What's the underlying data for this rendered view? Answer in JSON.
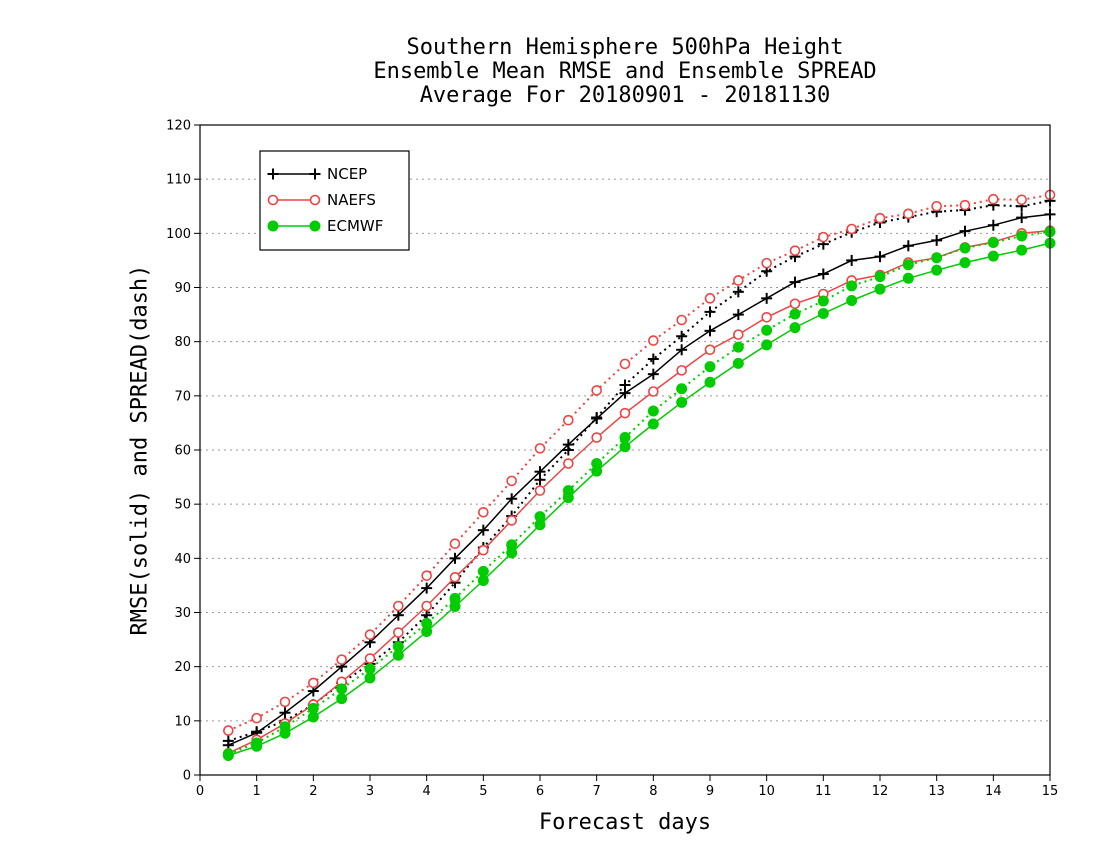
{
  "chart_data": {
    "type": "line",
    "title": [
      "Southern Hemisphere 500hPa Height",
      "Ensemble Mean RMSE and Ensemble SPREAD",
      "Average For 20180901 - 20181130"
    ],
    "xlabel": "Forecast days",
    "ylabel": "RMSE(solid) and SPREAD(dash)",
    "xlim": [
      0,
      15
    ],
    "ylim": [
      0,
      120
    ],
    "xticks": [
      0,
      1,
      2,
      3,
      4,
      5,
      6,
      7,
      8,
      9,
      10,
      11,
      12,
      13,
      14,
      15
    ],
    "yticks": [
      0,
      10,
      20,
      30,
      40,
      50,
      60,
      70,
      80,
      90,
      100,
      110,
      120
    ],
    "grid": "horizontal dotted",
    "legend_position": "top-left",
    "x": [
      0.5,
      1.0,
      1.5,
      2.0,
      2.5,
      3.0,
      3.5,
      4.0,
      4.5,
      5.0,
      5.5,
      6.0,
      6.5,
      7.0,
      7.5,
      8.0,
      8.5,
      9.0,
      9.5,
      10.0,
      10.5,
      11.0,
      11.5,
      12.0,
      12.5,
      13.0,
      13.5,
      14.0,
      14.5,
      15.0
    ],
    "series": [
      {
        "name": "NCEP",
        "metric": "RMSE",
        "style": "solid",
        "color": "#000000",
        "marker": "plus",
        "values": [
          5.5,
          7.8,
          11.5,
          15.5,
          20.0,
          24.5,
          29.5,
          34.5,
          40.0,
          45.2,
          51.0,
          56.0,
          61.0,
          65.8,
          70.5,
          74.0,
          78.5,
          82.0,
          85.0,
          88.0,
          91.0,
          92.5,
          95.0,
          95.7,
          97.7,
          98.7,
          100.4,
          101.5,
          102.9,
          103.5
        ]
      },
      {
        "name": "NCEP",
        "metric": "SPREAD",
        "style": "dotted",
        "color": "#000000",
        "marker": "plus",
        "values": [
          6.3,
          8.0,
          10.0,
          13.0,
          17.0,
          20.5,
          24.5,
          29.5,
          35.5,
          42.0,
          47.8,
          54.5,
          60.0,
          66.0,
          72.0,
          76.8,
          81.0,
          85.5,
          89.2,
          93.0,
          95.7,
          98.0,
          100.2,
          102.0,
          103.0,
          104.0,
          104.3,
          105.2,
          105.0,
          106.0
        ]
      },
      {
        "name": "NAEFS",
        "metric": "RMSE",
        "style": "solid",
        "color": "#ee4444",
        "marker": "open-circle",
        "values": [
          4.0,
          6.5,
          9.5,
          13.0,
          17.2,
          21.5,
          26.3,
          31.2,
          36.5,
          41.5,
          47.0,
          52.5,
          57.5,
          62.3,
          66.8,
          70.8,
          74.7,
          78.5,
          81.3,
          84.5,
          87.0,
          88.8,
          91.3,
          92.3,
          94.6,
          95.5,
          97.4,
          98.4,
          100.0,
          100.5
        ]
      },
      {
        "name": "NAEFS",
        "metric": "SPREAD",
        "style": "dotted",
        "color": "#ee4444",
        "marker": "open-circle",
        "values": [
          8.2,
          10.5,
          13.5,
          17.0,
          21.3,
          25.9,
          31.2,
          36.8,
          42.7,
          48.5,
          54.3,
          60.3,
          65.5,
          71.0,
          75.9,
          80.2,
          84.0,
          88.0,
          91.3,
          94.5,
          96.8,
          99.3,
          100.8,
          102.8,
          103.6,
          105.0,
          105.2,
          106.3,
          106.2,
          107.1
        ]
      },
      {
        "name": "ECMWF",
        "metric": "RMSE",
        "style": "solid",
        "color": "#00cc00",
        "marker": "filled-circle",
        "values": [
          3.6,
          5.3,
          7.7,
          10.7,
          14.1,
          17.9,
          22.1,
          26.5,
          31.1,
          35.9,
          41.0,
          46.2,
          51.2,
          56.1,
          60.6,
          64.8,
          68.8,
          72.5,
          76.0,
          79.4,
          82.6,
          85.2,
          87.6,
          89.7,
          91.7,
          93.2,
          94.6,
          95.8,
          96.9,
          98.2
        ]
      },
      {
        "name": "ECMWF",
        "metric": "SPREAD",
        "style": "dotted",
        "color": "#00cc00",
        "marker": "filled-circle",
        "values": [
          3.9,
          5.9,
          8.9,
          12.3,
          15.9,
          19.6,
          23.7,
          28.0,
          32.6,
          37.6,
          42.5,
          47.7,
          52.5,
          57.5,
          62.3,
          67.2,
          71.3,
          75.4,
          79.0,
          82.1,
          85.1,
          87.5,
          90.3,
          92.0,
          94.2,
          95.5,
          97.3,
          98.3,
          99.5,
          100.3
        ]
      }
    ],
    "legend": [
      {
        "label": "NCEP",
        "color": "#000000",
        "marker": "plus"
      },
      {
        "label": "NAEFS",
        "color": "#ee4444",
        "marker": "open-circle"
      },
      {
        "label": "ECMWF",
        "color": "#00cc00",
        "marker": "filled-circle"
      }
    ]
  }
}
